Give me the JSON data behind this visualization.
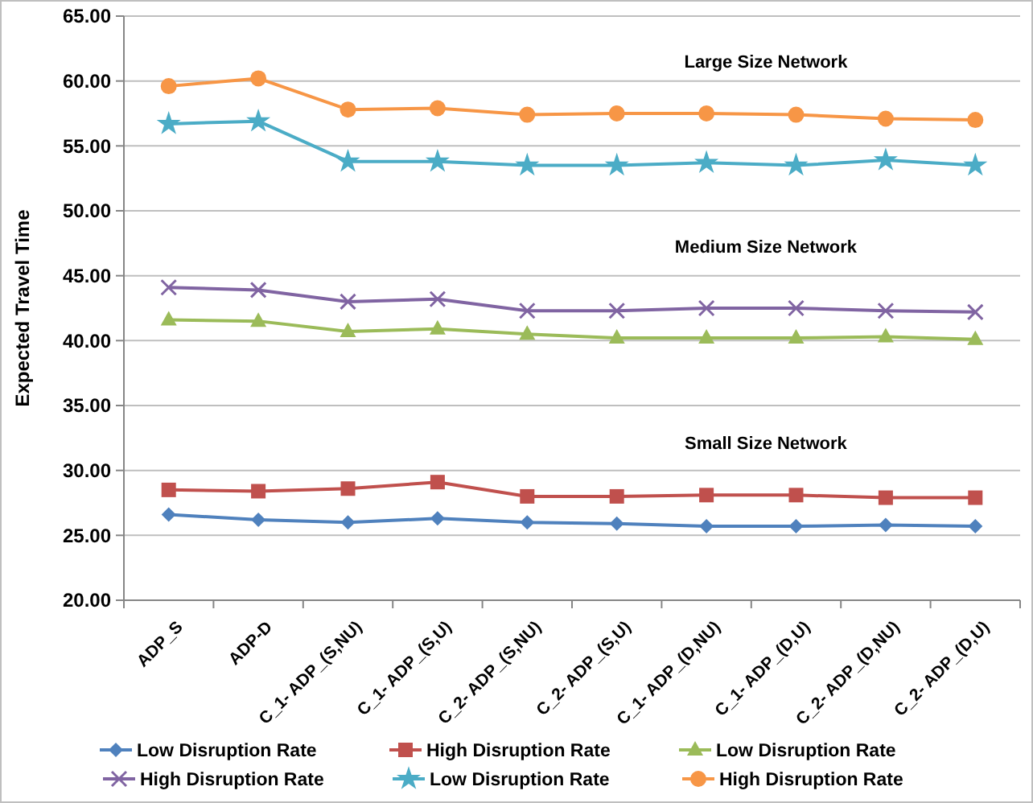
{
  "chart_data": {
    "type": "line",
    "ylabel": "Expected Travel Time",
    "categories": [
      "ADP_S",
      "ADP-D",
      "C_1- ADP_(S,NU)",
      "C_1- ADP_(S,U)",
      "C_2- ADP_(S,NU)",
      "C_2- ADP_(S,U)",
      "C_1- ADP_(D,NU)",
      "C_1- ADP_(D,U)",
      "C_2- ADP_(D,NU)",
      "C_2- ADP_(D,U)"
    ],
    "series": [
      {
        "name": "Low Disruption Rate",
        "color": "#4f81bd",
        "marker": "diamond",
        "values": [
          26.6,
          26.2,
          26.0,
          26.3,
          26.0,
          25.9,
          25.7,
          25.7,
          25.8,
          25.7
        ]
      },
      {
        "name": "High Disruption Rate",
        "color": "#c0504d",
        "marker": "square",
        "values": [
          28.5,
          28.4,
          28.6,
          29.1,
          28.0,
          28.0,
          28.1,
          28.1,
          27.9,
          27.9
        ]
      },
      {
        "name": "Low Disruption Rate",
        "color": "#9bbb59",
        "marker": "triangle",
        "values": [
          41.6,
          41.5,
          40.7,
          40.9,
          40.5,
          40.2,
          40.2,
          40.2,
          40.3,
          40.1
        ]
      },
      {
        "name": "High Disruption Rate",
        "color": "#8064a2",
        "marker": "cross",
        "values": [
          44.1,
          43.9,
          43.0,
          43.2,
          42.3,
          42.3,
          42.5,
          42.5,
          42.3,
          42.2
        ]
      },
      {
        "name": "Low Disruption Rate",
        "color": "#4bacc6",
        "marker": "star",
        "values": [
          56.7,
          56.9,
          53.8,
          53.8,
          53.5,
          53.5,
          53.7,
          53.5,
          53.9,
          53.5
        ]
      },
      {
        "name": "High Disruption Rate",
        "color": "#f79646",
        "marker": "circle",
        "values": [
          59.6,
          60.2,
          57.8,
          57.9,
          57.4,
          57.5,
          57.5,
          57.4,
          57.1,
          57.0
        ]
      }
    ],
    "ylim": [
      20,
      65
    ],
    "yticks": [
      {
        "value": 20,
        "label": "20.00"
      },
      {
        "value": 25,
        "label": "25.00"
      },
      {
        "value": 30,
        "label": "30.00"
      },
      {
        "value": 35,
        "label": "35.00"
      },
      {
        "value": 40,
        "label": "40.00"
      },
      {
        "value": 45,
        "label": "45.00"
      },
      {
        "value": 50,
        "label": "50.00"
      },
      {
        "value": 55,
        "label": "55.00"
      },
      {
        "value": 60,
        "label": "60.00"
      },
      {
        "value": 65,
        "label": "65.00"
      }
    ],
    "grid": "y",
    "legend": "bottom",
    "line_style": "solid",
    "annotations": [
      "Large Size Network",
      "Medium  Size Network",
      "Small Size Network"
    ]
  }
}
